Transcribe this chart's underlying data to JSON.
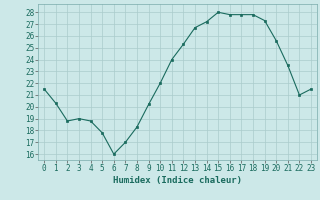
{
  "x": [
    0,
    1,
    2,
    3,
    4,
    5,
    6,
    7,
    8,
    9,
    10,
    11,
    12,
    13,
    14,
    15,
    16,
    17,
    18,
    19,
    20,
    21,
    22,
    23
  ],
  "y": [
    21.5,
    20.3,
    18.8,
    19.0,
    18.8,
    17.8,
    16.0,
    17.0,
    18.3,
    20.2,
    22.0,
    24.0,
    25.3,
    26.7,
    27.2,
    28.0,
    27.8,
    27.8,
    27.8,
    27.3,
    25.6,
    23.5,
    21.0,
    21.5
  ],
  "title": "",
  "xlabel": "Humidex (Indice chaleur)",
  "ylabel": "",
  "xlim": [
    -0.5,
    23.5
  ],
  "ylim": [
    15.5,
    28.7
  ],
  "yticks": [
    16,
    17,
    18,
    19,
    20,
    21,
    22,
    23,
    24,
    25,
    26,
    27,
    28
  ],
  "xticks": [
    0,
    1,
    2,
    3,
    4,
    5,
    6,
    7,
    8,
    9,
    10,
    11,
    12,
    13,
    14,
    15,
    16,
    17,
    18,
    19,
    20,
    21,
    22,
    23
  ],
  "line_color": "#1a6b5e",
  "marker_color": "#1a6b5e",
  "bg_color": "#cce8e8",
  "grid_color": "#aacccc",
  "label_fontsize": 6.5,
  "tick_fontsize": 5.5
}
